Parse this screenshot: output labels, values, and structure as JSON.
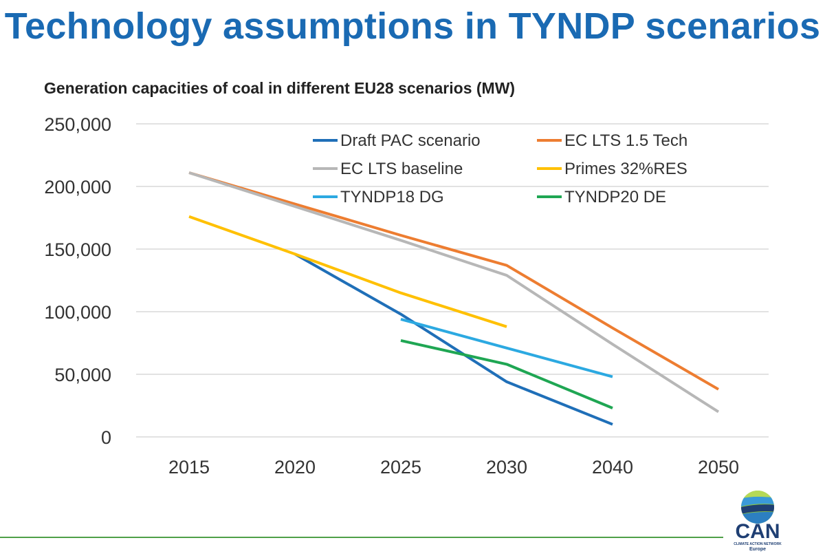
{
  "slide": {
    "title": "Technology assumptions in TYNDP scenarios"
  },
  "chart_data": {
    "type": "line",
    "title": "Generation capacities of coal in different EU28 scenarios (MW)",
    "xlabel": "",
    "ylabel": "",
    "categories": [
      "2015",
      "2020",
      "2025",
      "2030",
      "2040",
      "2050"
    ],
    "ylim": [
      0,
      250000
    ],
    "yticks": [
      0,
      50000,
      100000,
      150000,
      200000,
      250000
    ],
    "ytick_labels": [
      "0",
      "50,000",
      "100,000",
      "150,000",
      "200,000",
      "250,000"
    ],
    "grid": true,
    "legend_position": "top-right",
    "series": [
      {
        "name": "Draft PAC scenario",
        "color": "#1f6fb8",
        "values": [
          null,
          146000,
          98000,
          44000,
          10000,
          null
        ]
      },
      {
        "name": "EC LTS 1.5 Tech",
        "color": "#ed7d31",
        "values": [
          211000,
          186000,
          161000,
          137000,
          87000,
          38000
        ]
      },
      {
        "name": "EC LTS baseline",
        "color": "#b7b7b7",
        "values": [
          211000,
          184000,
          157000,
          129000,
          74000,
          20000
        ]
      },
      {
        "name": "Primes 32%RES",
        "color": "#ffc000",
        "values": [
          176000,
          146000,
          115000,
          88000,
          null,
          null
        ]
      },
      {
        "name": "TYNDP18 DG",
        "color": "#2ca9e1",
        "values": [
          null,
          null,
          94000,
          71000,
          48000,
          null
        ]
      },
      {
        "name": "TYNDP20 DE",
        "color": "#1fa653",
        "values": [
          null,
          null,
          77000,
          58000,
          23000,
          null
        ]
      }
    ]
  },
  "logo": {
    "word": "CAN",
    "subtitle": "CLIMATE ACTION NETWORK",
    "region": "Europe"
  }
}
